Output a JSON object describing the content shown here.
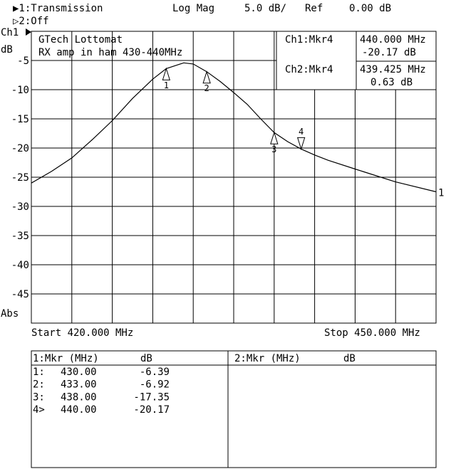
{
  "header": {
    "channel1": "▶1:Transmission",
    "format": "Log Mag",
    "scale": "5.0 dB/",
    "ref_label": "Ref",
    "ref_value": "0.00 dB",
    "channel2": "▷2:Off"
  },
  "chart_data": {
    "type": "line",
    "channel_label": "Ch1",
    "unit_label": "dB",
    "bottom_label": "Abs",
    "annotation": [
      "GTech Lottomat",
      "RX amp in ham 430-440MHz"
    ],
    "start_label": "Start 420.000 MHz",
    "stop_label": "Stop 450.000 MHz",
    "xlim": [
      420,
      450
    ],
    "ylim": [
      -50,
      0
    ],
    "yticks": [
      -5,
      -10,
      -15,
      -20,
      -25,
      -30,
      -35,
      -40,
      -45
    ],
    "x_divisions": 10,
    "grid": true,
    "series": [
      {
        "name": "1",
        "color": "#000000",
        "x": [
          420,
          421.5,
          423,
          424.5,
          426,
          427.5,
          429,
          430,
          431.3,
          432,
          433,
          434,
          435,
          436,
          437,
          438,
          439,
          440,
          441,
          442,
          444,
          447,
          450
        ],
        "values": [
          -26,
          -24,
          -21.7,
          -18.6,
          -15.3,
          -11.5,
          -8.2,
          -6.39,
          -5.4,
          -5.6,
          -6.92,
          -8.6,
          -10.5,
          -12.5,
          -15,
          -17.35,
          -18.9,
          -20.17,
          -21.2,
          -22.1,
          -23.6,
          -25.8,
          -27.5
        ]
      }
    ],
    "markers": [
      {
        "name": "1",
        "list_label": "1:",
        "x": 430,
        "x_label": "430.00",
        "value": -6.39
      },
      {
        "name": "2",
        "list_label": "2:",
        "x": 433,
        "x_label": "433.00",
        "value": -6.92
      },
      {
        "name": "3",
        "list_label": "3:",
        "x": 438,
        "x_label": "438.00",
        "value": -17.35
      },
      {
        "name": "4",
        "list_label": "4>",
        "x": 440,
        "x_label": "440.00",
        "value": -20.17,
        "active": true
      }
    ],
    "readout": {
      "ch1": "Ch1:Mkr4",
      "ch1_freq": "440.000 MHz",
      "ch1_value": "-20.17 dB",
      "ch2": "Ch2:Mkr4",
      "ch2_freq": "439.425 MHz",
      "ch2_value": "0.63 dB"
    }
  },
  "table": {
    "left_header": [
      "1:Mkr (MHz)",
      "dB"
    ],
    "right_header": [
      "2:Mkr (MHz)",
      "dB"
    ]
  }
}
